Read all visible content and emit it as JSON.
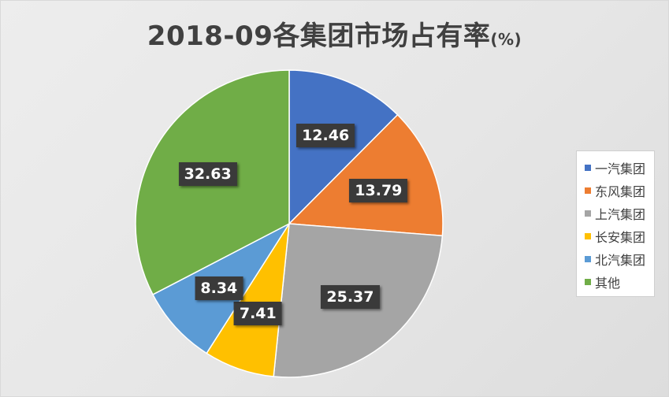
{
  "chart_data": {
    "type": "pie",
    "title": "2018-09各集团市场占有率",
    "title_unit": "(%)",
    "legend_position": "right",
    "slices": [
      {
        "name": "一汽集团",
        "value": 12.46,
        "color": "#4472C4"
      },
      {
        "name": "东风集团",
        "value": 13.79,
        "color": "#ED7D31"
      },
      {
        "name": "上汽集团",
        "value": 25.37,
        "color": "#A5A5A5"
      },
      {
        "name": "长安集团",
        "value": 7.41,
        "color": "#FFC000"
      },
      {
        "name": "北汽集团",
        "value": 8.34,
        "color": "#5B9BD5"
      },
      {
        "name": "其他",
        "value": 32.63,
        "color": "#70AD47"
      }
    ]
  }
}
